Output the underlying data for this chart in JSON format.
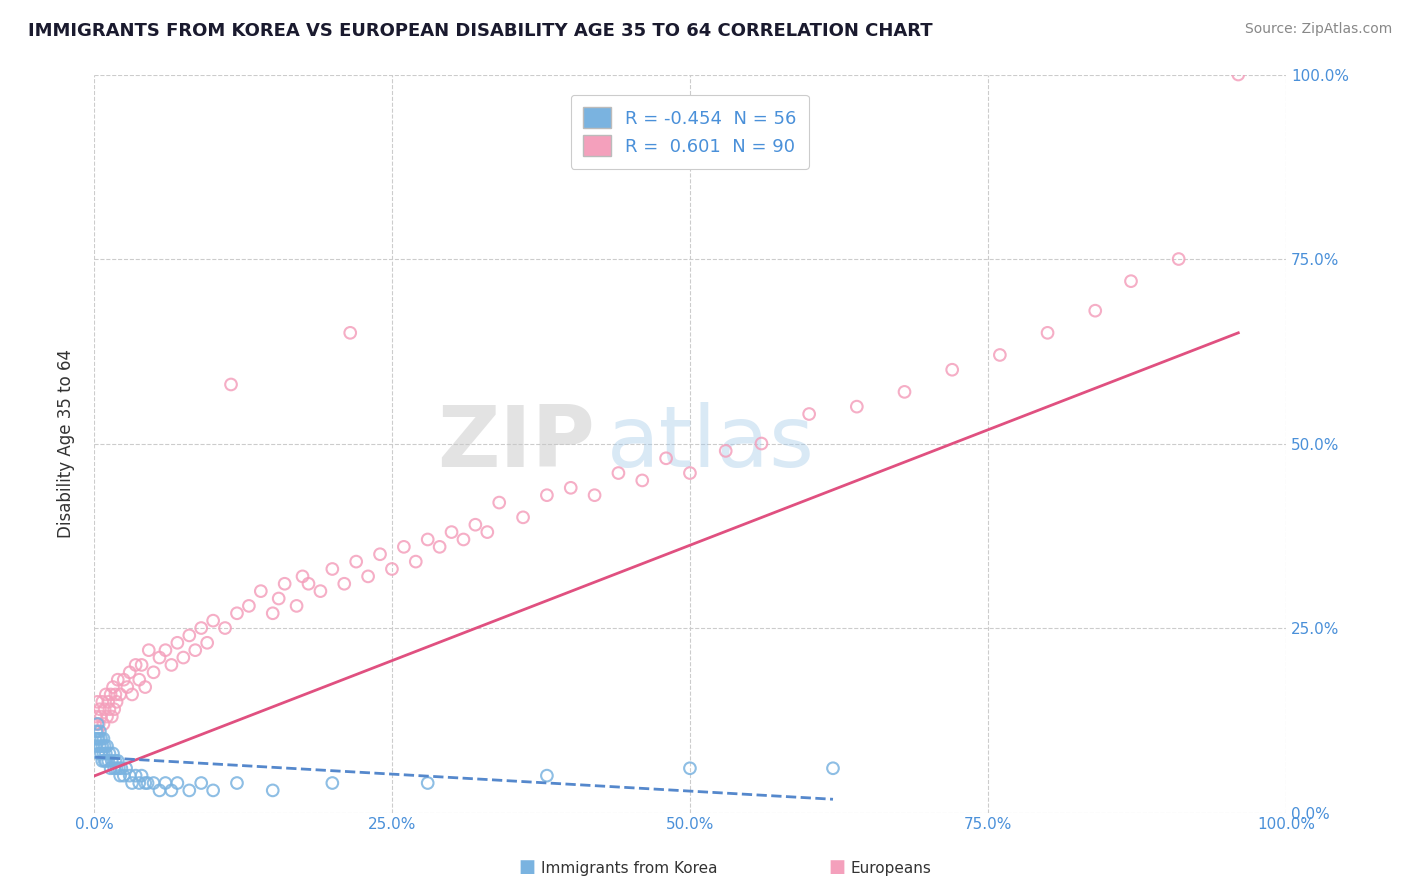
{
  "title": "IMMIGRANTS FROM KOREA VS EUROPEAN DISABILITY AGE 35 TO 64 CORRELATION CHART",
  "source": "Source: ZipAtlas.com",
  "ylabel": "Disability Age 35 to 64",
  "xlim": [
    0.0,
    1.0
  ],
  "ylim": [
    0.0,
    1.0
  ],
  "xtick_labels": [
    "0.0%",
    "25.0%",
    "50.0%",
    "75.0%",
    "100.0%"
  ],
  "xtick_vals": [
    0.0,
    0.25,
    0.5,
    0.75,
    1.0
  ],
  "ytick_labels_right": [
    "0.0%",
    "25.0%",
    "50.0%",
    "75.0%",
    "100.0%"
  ],
  "ytick_vals": [
    0.0,
    0.25,
    0.5,
    0.75,
    1.0
  ],
  "korea_color": "#7ab3e0",
  "europe_color": "#f4a0bc",
  "korea_line_color": "#5588cc",
  "europe_line_color": "#e05080",
  "korea_R": -0.454,
  "korea_N": 56,
  "europe_R": 0.601,
  "europe_N": 90,
  "legend_label_korea": "Immigrants from Korea",
  "legend_label_europe": "Europeans",
  "watermark": "ZIPatlas",
  "background_color": "#ffffff",
  "grid_color": "#cccccc",
  "title_color": "#1a1a2e",
  "source_color": "#888888",
  "axis_label_color": "#4a90d9",
  "label_color_dark": "#333333",
  "korea_scatter_x": [
    0.001,
    0.002,
    0.002,
    0.003,
    0.003,
    0.004,
    0.004,
    0.005,
    0.005,
    0.006,
    0.006,
    0.007,
    0.007,
    0.008,
    0.008,
    0.009,
    0.009,
    0.01,
    0.01,
    0.011,
    0.012,
    0.013,
    0.014,
    0.015,
    0.016,
    0.017,
    0.018,
    0.019,
    0.02,
    0.021,
    0.022,
    0.023,
    0.025,
    0.027,
    0.03,
    0.032,
    0.035,
    0.038,
    0.04,
    0.043,
    0.045,
    0.05,
    0.055,
    0.06,
    0.065,
    0.07,
    0.08,
    0.09,
    0.1,
    0.12,
    0.15,
    0.2,
    0.28,
    0.38,
    0.5,
    0.62
  ],
  "korea_scatter_y": [
    0.1,
    0.09,
    0.11,
    0.1,
    0.12,
    0.08,
    0.1,
    0.09,
    0.11,
    0.08,
    0.1,
    0.07,
    0.09,
    0.08,
    0.1,
    0.07,
    0.09,
    0.07,
    0.08,
    0.09,
    0.07,
    0.08,
    0.06,
    0.07,
    0.08,
    0.06,
    0.07,
    0.06,
    0.07,
    0.06,
    0.05,
    0.06,
    0.05,
    0.06,
    0.05,
    0.04,
    0.05,
    0.04,
    0.05,
    0.04,
    0.04,
    0.04,
    0.03,
    0.04,
    0.03,
    0.04,
    0.03,
    0.04,
    0.03,
    0.04,
    0.03,
    0.04,
    0.04,
    0.05,
    0.06,
    0.06
  ],
  "europe_scatter_x": [
    0.001,
    0.002,
    0.003,
    0.003,
    0.004,
    0.005,
    0.006,
    0.007,
    0.008,
    0.009,
    0.01,
    0.011,
    0.012,
    0.013,
    0.014,
    0.015,
    0.016,
    0.017,
    0.018,
    0.019,
    0.02,
    0.022,
    0.025,
    0.028,
    0.03,
    0.032,
    0.035,
    0.038,
    0.04,
    0.043,
    0.046,
    0.05,
    0.055,
    0.06,
    0.065,
    0.07,
    0.075,
    0.08,
    0.085,
    0.09,
    0.095,
    0.1,
    0.11,
    0.115,
    0.12,
    0.13,
    0.14,
    0.15,
    0.155,
    0.16,
    0.17,
    0.175,
    0.18,
    0.19,
    0.2,
    0.21,
    0.215,
    0.22,
    0.23,
    0.24,
    0.25,
    0.26,
    0.27,
    0.28,
    0.29,
    0.3,
    0.31,
    0.32,
    0.33,
    0.34,
    0.36,
    0.38,
    0.4,
    0.42,
    0.44,
    0.46,
    0.48,
    0.5,
    0.53,
    0.56,
    0.6,
    0.64,
    0.68,
    0.72,
    0.76,
    0.8,
    0.84,
    0.87,
    0.91,
    0.96
  ],
  "europe_scatter_y": [
    0.12,
    0.13,
    0.11,
    0.15,
    0.12,
    0.14,
    0.13,
    0.15,
    0.12,
    0.14,
    0.16,
    0.13,
    0.15,
    0.14,
    0.16,
    0.13,
    0.17,
    0.14,
    0.16,
    0.15,
    0.18,
    0.16,
    0.18,
    0.17,
    0.19,
    0.16,
    0.2,
    0.18,
    0.2,
    0.17,
    0.22,
    0.19,
    0.21,
    0.22,
    0.2,
    0.23,
    0.21,
    0.24,
    0.22,
    0.25,
    0.23,
    0.26,
    0.25,
    0.58,
    0.27,
    0.28,
    0.3,
    0.27,
    0.29,
    0.31,
    0.28,
    0.32,
    0.31,
    0.3,
    0.33,
    0.31,
    0.65,
    0.34,
    0.32,
    0.35,
    0.33,
    0.36,
    0.34,
    0.37,
    0.36,
    0.38,
    0.37,
    0.39,
    0.38,
    0.42,
    0.4,
    0.43,
    0.44,
    0.43,
    0.46,
    0.45,
    0.48,
    0.46,
    0.49,
    0.5,
    0.54,
    0.55,
    0.57,
    0.6,
    0.62,
    0.65,
    0.68,
    0.72,
    0.75,
    1.0
  ],
  "europe_regline_x": [
    0.001,
    0.96
  ],
  "europe_regline_y": [
    0.05,
    0.65
  ],
  "korea_regline_x": [
    0.001,
    0.62
  ],
  "korea_regline_y": [
    0.075,
    0.018
  ]
}
